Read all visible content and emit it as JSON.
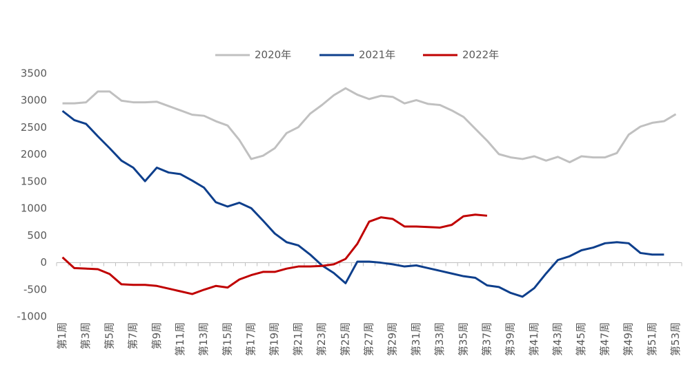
{
  "chart_data": {
    "type": "line",
    "categories": [
      "第1周",
      null,
      "第3周",
      null,
      "第5周",
      null,
      "第7周",
      null,
      "第9周",
      null,
      "第11周",
      null,
      "第13周",
      null,
      "第15周",
      null,
      "第17周",
      null,
      "第19周",
      null,
      "第21周",
      null,
      "第23周",
      null,
      "第25周",
      null,
      "第27周",
      null,
      "第29周",
      null,
      "第31周",
      null,
      "第33周",
      null,
      "第35周",
      null,
      "第37周",
      null,
      "第39周",
      null,
      "第41周",
      null,
      "第43周",
      null,
      "第45周",
      null,
      "第47周",
      null,
      "第49周",
      null,
      "第51周",
      null,
      "第53周"
    ],
    "series": [
      {
        "name": "2020年",
        "color": "#c0c0c0",
        "values": [
          2950,
          2950,
          2970,
          3170,
          3170,
          3000,
          2970,
          2970,
          2980,
          2900,
          2820,
          2740,
          2720,
          2620,
          2540,
          2270,
          1920,
          1980,
          2120,
          2400,
          2510,
          2760,
          2920,
          3100,
          3230,
          3110,
          3030,
          3090,
          3070,
          2950,
          3010,
          2940,
          2920,
          2820,
          2700,
          2480,
          2260,
          2010,
          1950,
          1920,
          1970,
          1890,
          1960,
          1860,
          1970,
          1950,
          1950,
          2030,
          2370,
          2520,
          2590,
          2620,
          2750
        ]
      },
      {
        "name": "2021年",
        "color": "#0e3f8c",
        "values": [
          2810,
          2640,
          2570,
          2340,
          2120,
          1890,
          1760,
          1510,
          1760,
          1670,
          1640,
          1520,
          1390,
          1120,
          1040,
          1110,
          1010,
          780,
          540,
          380,
          320,
          150,
          -50,
          -190,
          -380,
          20,
          20,
          0,
          -30,
          -70,
          -50,
          -100,
          -150,
          -200,
          -250,
          -280,
          -420,
          -450,
          -560,
          -630,
          -470,
          -200,
          50,
          120,
          230,
          280,
          360,
          380,
          360,
          180,
          150,
          150,
          null
        ]
      },
      {
        "name": "2022年",
        "color": "#c00000",
        "values": [
          100,
          -100,
          -110,
          -120,
          -210,
          -400,
          -410,
          -410,
          -430,
          -480,
          -530,
          -580,
          -500,
          -430,
          -460,
          -310,
          -230,
          -170,
          -170,
          -110,
          -70,
          -70,
          -60,
          -30,
          70,
          350,
          760,
          840,
          810,
          670,
          670,
          660,
          650,
          700,
          860,
          890,
          870,
          null,
          null,
          null,
          null,
          null,
          null,
          null,
          null,
          null,
          null,
          null,
          null,
          null,
          null,
          null,
          null
        ]
      }
    ],
    "ylim": [
      -1000,
      3500
    ],
    "yticks": [
      -1000,
      -500,
      0,
      500,
      1000,
      1500,
      2000,
      2500,
      3000,
      3500
    ],
    "legend": "top",
    "grid": false
  }
}
